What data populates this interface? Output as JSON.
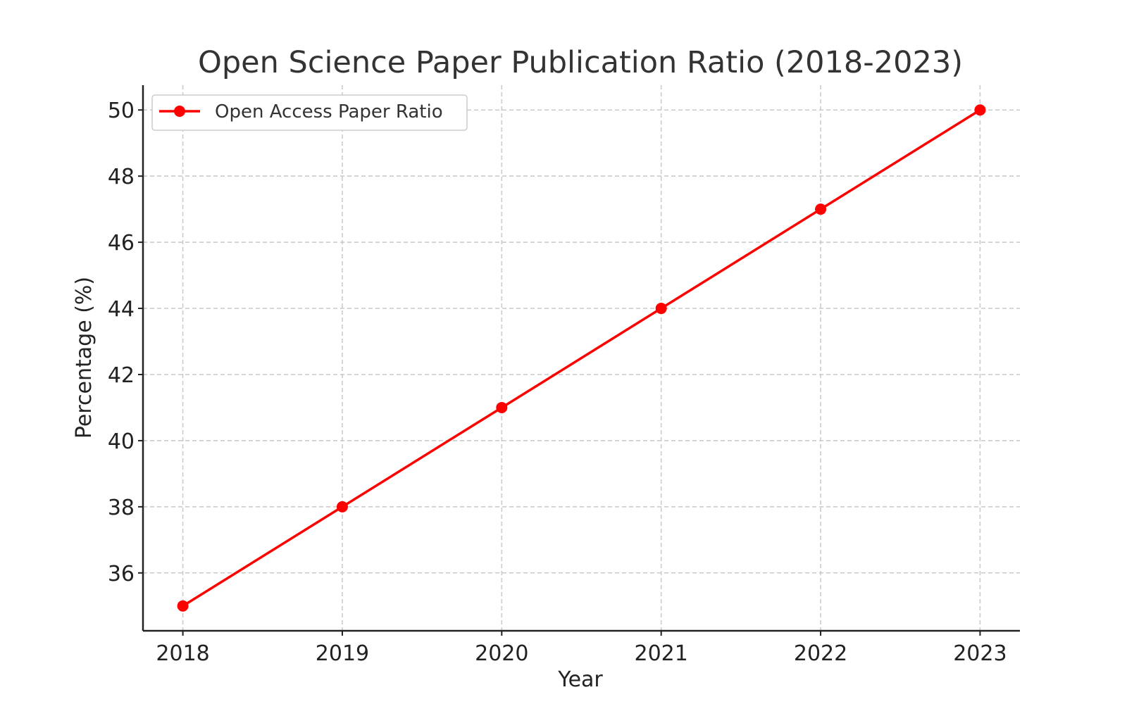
{
  "chart_data": {
    "type": "line",
    "title": "Open Science Paper Publication Ratio (2018-2023)",
    "xlabel": "Year",
    "ylabel": "Percentage (%)",
    "x": [
      2018,
      2019,
      2020,
      2021,
      2022,
      2023
    ],
    "x_tick_labels": [
      "2018",
      "2019",
      "2020",
      "2021",
      "2022",
      "2023"
    ],
    "y_ticks": [
      36,
      38,
      40,
      42,
      44,
      46,
      48,
      50
    ],
    "y_tick_labels": [
      "36",
      "38",
      "40",
      "42",
      "44",
      "46",
      "48",
      "50"
    ],
    "xlim": [
      2017.75,
      2023.25
    ],
    "ylim": [
      34.25,
      50.75
    ],
    "grid": true,
    "legend_position": "top-left",
    "series": [
      {
        "name": "Open Access Paper Ratio",
        "color": "#ff0000",
        "marker": "circle",
        "values": [
          35,
          38,
          41,
          44,
          47,
          50
        ]
      }
    ]
  }
}
